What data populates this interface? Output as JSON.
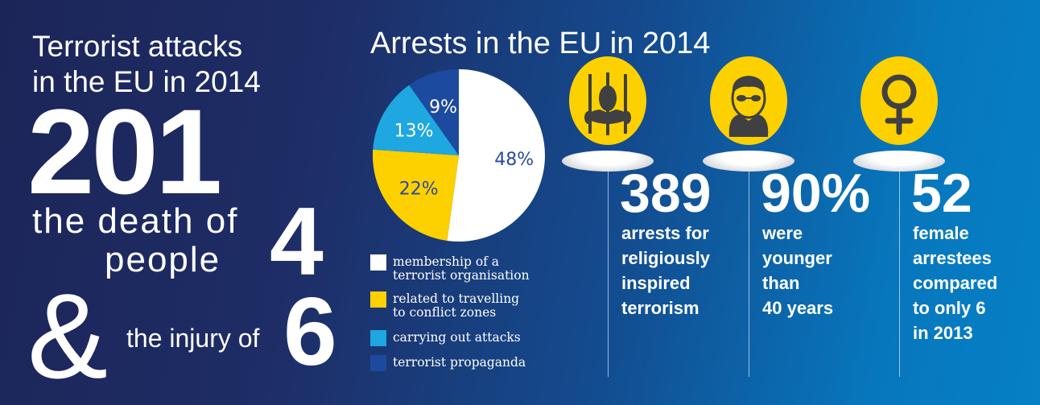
{
  "left": {
    "title_line1": "Terrorist attacks",
    "title_line2": "in the EU in 2014",
    "attacks_count": "201",
    "death_prefix": "the death of",
    "death_count": "4",
    "death_suffix": "people",
    "ampersand": "&",
    "injury_prefix": "the injury of",
    "injury_count": "6"
  },
  "chart_data": {
    "type": "pie",
    "title": "Arrests in the EU in 2014",
    "categories": [
      "membership of a terrorist organisation",
      "related to travelling to conflict zones",
      "carrying out attacks",
      "terrorist propaganda"
    ],
    "values": [
      48,
      22,
      13,
      9
    ],
    "labels": [
      "48%",
      "22%",
      "13%",
      "9%"
    ],
    "colors": [
      "#ffffff",
      "#fdd000",
      "#1ea7e1",
      "#1c4a9e"
    ],
    "label_colors": [
      "#2a4aa0",
      "#2a4aa0",
      "#ffffff",
      "#ffffff"
    ],
    "legend": {
      "placement": "bottom",
      "items": [
        {
          "line1": "membership of a",
          "line2": "terrorist organisation"
        },
        {
          "line1": "related to travelling",
          "line2": "to conflict zones"
        },
        {
          "line1": "carrying out attacks",
          "line2": ""
        },
        {
          "line1": "terrorist propaganda",
          "line2": ""
        }
      ]
    }
  },
  "stats": [
    {
      "icon": "prisoner-behind-bars-icon",
      "value": "389",
      "lines": [
        "arrests for",
        "religiously",
        "inspired",
        "terrorism"
      ]
    },
    {
      "icon": "young-man-icon",
      "value": "90%",
      "lines": [
        "were",
        "younger",
        "than",
        "40 years"
      ]
    },
    {
      "icon": "female-symbol-icon",
      "value": "52",
      "lines": [
        "female",
        "arrestees",
        "compared",
        "to only 6",
        "in 2013"
      ]
    }
  ],
  "colors": {
    "accent_yellow": "#fdd000",
    "icon_gray": "#404042",
    "bg_dark": "#1c2558",
    "bg_light": "#0680c6"
  }
}
